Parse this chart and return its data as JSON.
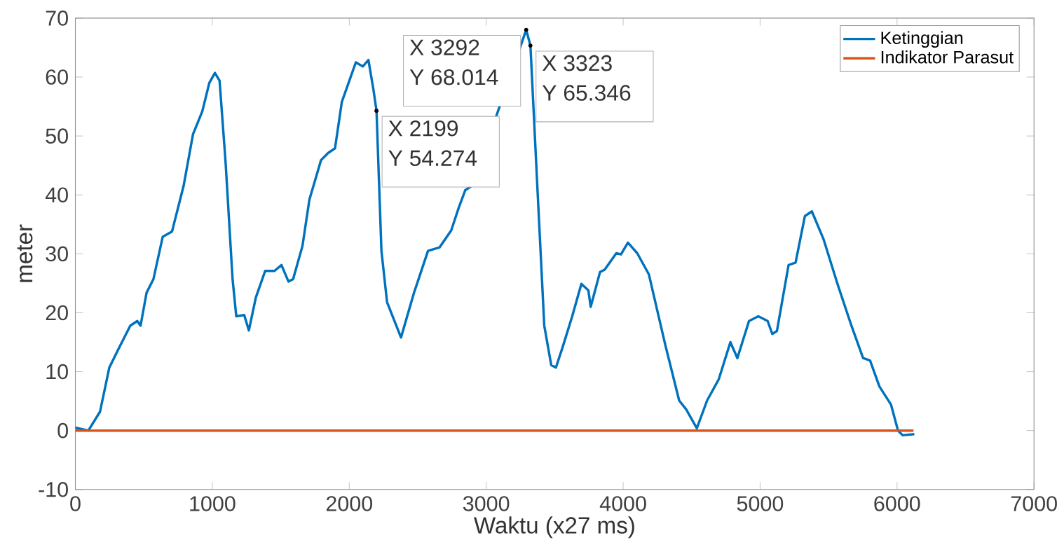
{
  "chart_data": {
    "type": "line",
    "xlabel": "Waktu (x27 ms)",
    "ylabel": "meter",
    "xlim": [
      0,
      7000
    ],
    "ylim": [
      -10,
      70
    ],
    "xticks": [
      0,
      1000,
      2000,
      3000,
      4000,
      5000,
      6000,
      7000
    ],
    "yticks": [
      -10,
      0,
      10,
      20,
      30,
      40,
      50,
      60,
      70
    ],
    "grid": false,
    "legend": "top right",
    "marker": "none",
    "line_style": "solid",
    "series": [
      {
        "name": "Ketinggian",
        "color": "#0072bd",
        "x": [
          0,
          95,
          180,
          248,
          316,
          401,
          452,
          476,
          520,
          570,
          638,
          706,
          791,
          859,
          927,
          978,
          1019,
          1053,
          1097,
          1148,
          1175,
          1233,
          1267,
          1318,
          1386,
          1454,
          1505,
          1556,
          1590,
          1658,
          1709,
          1794,
          1845,
          1896,
          1946,
          2048,
          2099,
          2140,
          2177,
          2199,
          2235,
          2276,
          2378,
          2473,
          2575,
          2660,
          2745,
          2796,
          2847,
          2898,
          3292,
          3323,
          3373,
          3424,
          3475,
          3509,
          3560,
          3628,
          3695,
          3746,
          3763,
          3831,
          3865,
          3950,
          3984,
          4035,
          4103,
          4188,
          4307,
          4409,
          4460,
          4538,
          4613,
          4698,
          4783,
          4834,
          4919,
          4987,
          5055,
          5089,
          5123,
          5208,
          5259,
          5327,
          5378,
          5463,
          5565,
          5667,
          5752,
          5803,
          5871,
          5956,
          6007,
          6041,
          6126
        ],
        "values": [
          0.5,
          0,
          3.2,
          10.7,
          13.9,
          17.8,
          18.6,
          17.8,
          23.4,
          25.7,
          32.9,
          33.8,
          41.6,
          50.3,
          54.2,
          59.0,
          60.7,
          59.4,
          45.5,
          25.7,
          19.4,
          19.6,
          17.0,
          22.6,
          27.1,
          27.1,
          28.1,
          25.3,
          25.7,
          31.3,
          39.2,
          45.9,
          47.1,
          47.9,
          55.8,
          62.5,
          61.8,
          62.9,
          57.8,
          54.274,
          30.5,
          21.8,
          15.8,
          23.4,
          30.5,
          31.1,
          34.0,
          37.6,
          40.8,
          41.6,
          68.014,
          65.346,
          41.6,
          17.8,
          11.1,
          10.7,
          14.3,
          19.4,
          24.9,
          23.8,
          21.0,
          26.9,
          27.3,
          30.1,
          29.9,
          31.9,
          30.1,
          26.5,
          14.6,
          5.1,
          3.6,
          0.4,
          5.1,
          8.7,
          15.0,
          12.3,
          18.6,
          19.4,
          18.6,
          16.4,
          16.9,
          28.1,
          28.5,
          36.4,
          37.2,
          32.5,
          24.9,
          17.8,
          12.3,
          11.9,
          7.5,
          4.4,
          0,
          -0.8,
          -0.6
        ]
      },
      {
        "name": "Indikator Parasut",
        "color": "#d95319",
        "x": [
          0,
          6120
        ],
        "values": [
          0,
          0
        ]
      }
    ],
    "annotations": [
      {
        "text": "X 2199",
        "x": 2199,
        "y": 54.274
      },
      {
        "text": "Y 54.274",
        "x": 2199,
        "y": 54.274
      },
      {
        "text": "X 3292",
        "x": 3292,
        "y": 68.014
      },
      {
        "text": "Y 68.014",
        "x": 3292,
        "y": 68.014
      },
      {
        "text": "X 3323",
        "x": 3323,
        "y": 65.346
      },
      {
        "text": "Y 65.346",
        "x": 3323,
        "y": 65.346
      }
    ]
  }
}
